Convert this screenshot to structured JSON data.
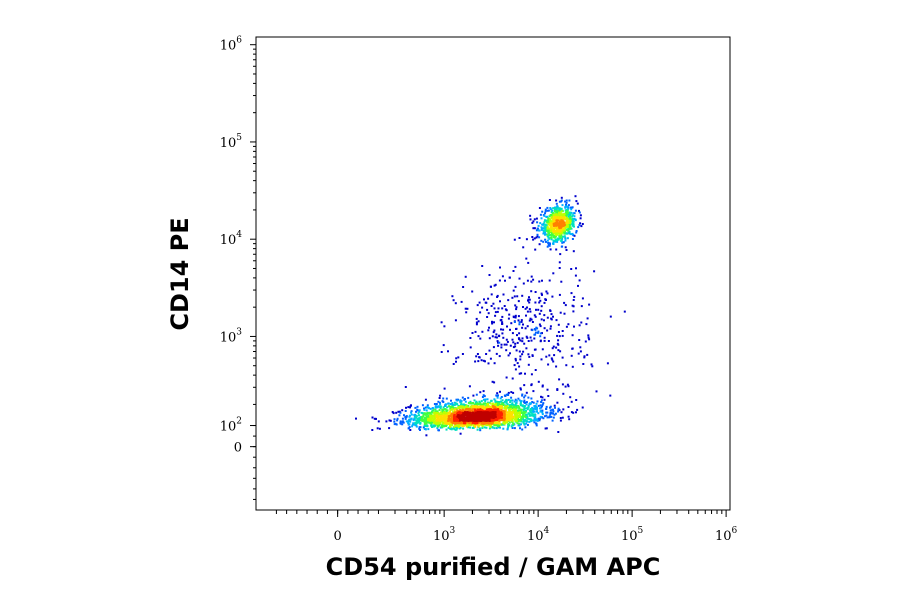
{
  "chart_data": {
    "type": "scatter",
    "title": "",
    "xlabel": "CD54 purified / GAM APC",
    "ylabel": "CD14 PE",
    "xscale": "biexponential-log",
    "yscale": "biexponential-log",
    "x_ticks": [
      {
        "value": 0,
        "base": "0",
        "exp": ""
      },
      {
        "value": 1000,
        "base": "10",
        "exp": "3"
      },
      {
        "value": 10000,
        "base": "10",
        "exp": "4"
      },
      {
        "value": 100000,
        "base": "10",
        "exp": "5"
      },
      {
        "value": 1000000,
        "base": "10",
        "exp": "6"
      }
    ],
    "y_ticks": [
      {
        "value": 0,
        "base": "0",
        "exp": ""
      },
      {
        "value": 100,
        "base": "10",
        "exp": "2"
      },
      {
        "value": 1000,
        "base": "10",
        "exp": "3"
      },
      {
        "value": 10000,
        "base": "10",
        "exp": "4"
      },
      {
        "value": 100000,
        "base": "10",
        "exp": "5"
      },
      {
        "value": 1000000,
        "base": "10",
        "exp": "6"
      }
    ],
    "xlim": [
      -400,
      1100000
    ],
    "ylim": [
      -300,
      1200000
    ],
    "grid": false,
    "legend": "none",
    "colormap": [
      "#0000cc",
      "#0060ff",
      "#00b0ff",
      "#00e0c0",
      "#40ff40",
      "#c0ff00",
      "#ffe000",
      "#ff8000",
      "#ff2000",
      "#c00000"
    ],
    "populations": [
      {
        "name": "",
        "center_x": 2200,
        "center_y": 150,
        "spread_x_decades": 0.35,
        "spread_y_decades": 0.09,
        "count": 2600
      },
      {
        "name": "",
        "center_x": 16000,
        "center_y": 14500,
        "spread_x_decades": 0.1,
        "spread_y_decades": 0.09,
        "count": 700
      },
      {
        "name": "",
        "center_x": 7000,
        "center_y": 1200,
        "spread_x_decades": 0.35,
        "spread_y_decades": 0.35,
        "count": 420
      }
    ]
  }
}
